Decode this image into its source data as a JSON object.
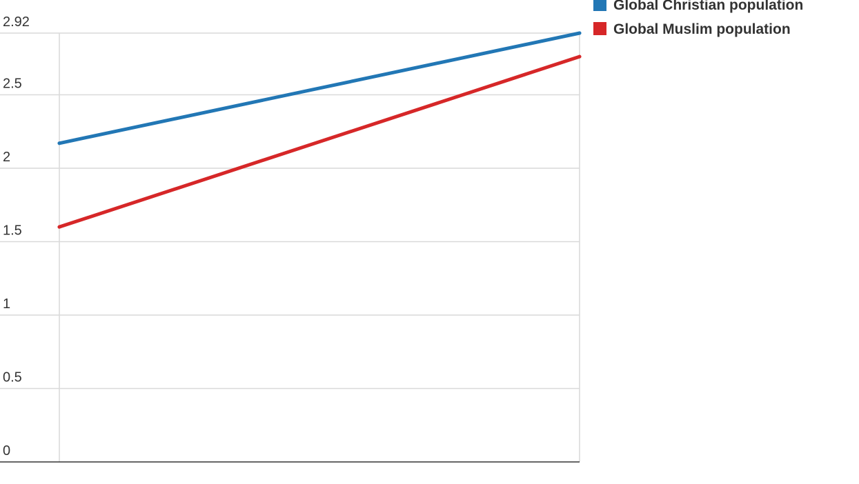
{
  "chart_data": {
    "type": "line",
    "title": "",
    "xlabel": "",
    "ylabel": "",
    "x": [
      "",
      ""
    ],
    "ylim": [
      0,
      2.92
    ],
    "yticks": [
      0,
      0.5,
      1,
      1.5,
      2,
      2.5,
      2.92
    ],
    "ytick_labels": [
      "0",
      "0.5",
      "1",
      "1.5",
      "2",
      "2.5",
      "2.92"
    ],
    "grid": true,
    "legend_position": "top-right",
    "series": [
      {
        "name": "Global Christian population",
        "color": "#2277b5",
        "values": [
          2.17,
          2.92
        ]
      },
      {
        "name": "Global Muslim population",
        "color": "#d62728",
        "values": [
          1.6,
          2.76
        ]
      }
    ]
  }
}
